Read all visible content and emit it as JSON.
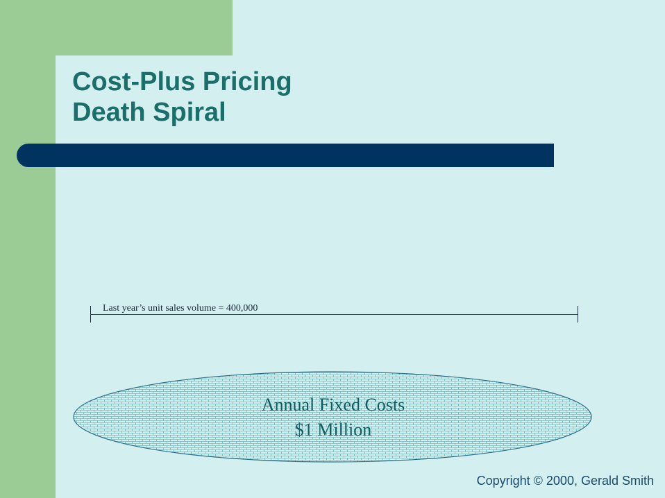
{
  "slide": {
    "title_line1": "Cost-Plus Pricing",
    "title_line2": "Death Spiral",
    "volume_label": "Last year’s unit sales volume = 400,000",
    "ellipse_line1": "Annual Fixed Costs",
    "ellipse_line2": "$1 Million",
    "copyright": "Copyright © 2000, Gerald Smith"
  },
  "colors": {
    "background": "#d3eff0",
    "sidebar_green": "#9ccc96",
    "title_text": "#1b6e6a",
    "title_bar": "#00335f",
    "ellipse_pattern": "#6fb5b8"
  }
}
